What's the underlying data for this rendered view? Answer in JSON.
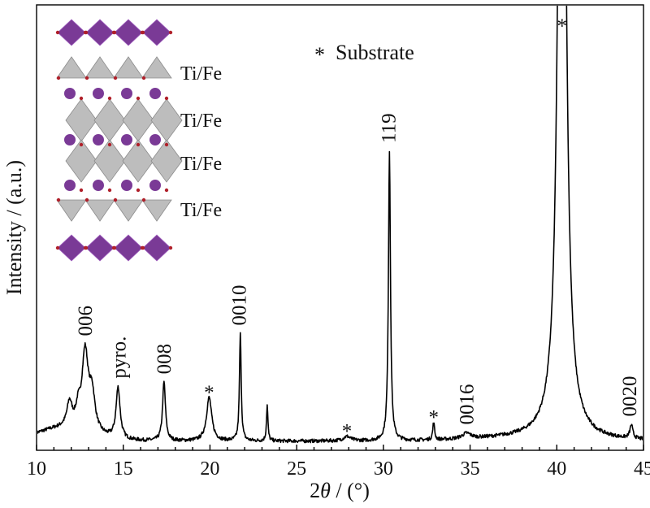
{
  "chart_data": {
    "type": "line",
    "xlabel_prefix": "2",
    "xlabel_symbol": "θ",
    "xlabel_suffix": " / (°)",
    "ylabel": "Intensity / (a.u.)",
    "xlim": [
      10,
      45
    ],
    "ylim": [
      0,
      1.0
    ],
    "x_ticks": [
      10,
      15,
      20,
      25,
      30,
      35,
      40,
      45
    ],
    "x_tick_labels": [
      "10",
      "15",
      "20",
      "25",
      "30",
      "35",
      "40",
      "45"
    ],
    "grid": false,
    "legend": {
      "marker": "*",
      "text": "Substrate"
    },
    "baseline": 0.02,
    "peaks": [
      {
        "x": 11.9,
        "height": 0.055,
        "width": 0.18
      },
      {
        "x": 12.4,
        "height": 0.035,
        "width": 0.15
      },
      {
        "x": 12.8,
        "height": 0.175,
        "width": 0.22
      },
      {
        "x": 13.2,
        "height": 0.08,
        "width": 0.2
      },
      {
        "x": 14.7,
        "height": 0.115,
        "width": 0.14
      },
      {
        "x": 17.35,
        "height": 0.132,
        "width": 0.1
      },
      {
        "x": 19.95,
        "height": 0.098,
        "width": 0.18
      },
      {
        "x": 21.75,
        "height": 0.24,
        "width": 0.06
      },
      {
        "x": 23.3,
        "height": 0.08,
        "width": 0.05
      },
      {
        "x": 27.9,
        "height": 0.01,
        "width": 0.25
      },
      {
        "x": 30.35,
        "height": 0.65,
        "width": 0.07
      },
      {
        "x": 32.9,
        "height": 0.04,
        "width": 0.06
      },
      {
        "x": 34.8,
        "height": 0.012,
        "width": 0.3
      },
      {
        "x": 40.3,
        "height": 2.4,
        "width": 0.22
      },
      {
        "x": 44.3,
        "height": 0.03,
        "width": 0.1
      }
    ],
    "annotations": [
      {
        "text": "006",
        "x": 12.8
      },
      {
        "text": "pyro.",
        "x": 14.75
      },
      {
        "text": "008",
        "x": 17.35
      },
      {
        "text": "*",
        "x": 19.95
      },
      {
        "text": "0010",
        "x": 21.7
      },
      {
        "text": "*",
        "x": 27.9
      },
      {
        "text": "119",
        "x": 30.3
      },
      {
        "text": "*",
        "x": 32.9
      },
      {
        "text": "0016",
        "x": 34.8
      },
      {
        "text": "*",
        "x": 40.3
      },
      {
        "text": "0020",
        "x": 44.2
      }
    ],
    "inset": {
      "layer_labels": [
        "Ti/Fe",
        "Ti/Fe",
        "Ti/Fe",
        "Ti/Fe"
      ],
      "colors": {
        "purple": "#7a3a96",
        "purple_light": "#a160c0",
        "gray": "#bdbdbd",
        "gray_dark": "#8c8c8c",
        "oxygen": "#b0202a"
      }
    }
  }
}
